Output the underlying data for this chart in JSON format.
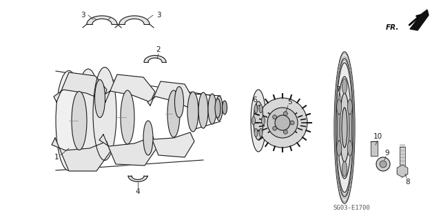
{
  "bg_color": "#ffffff",
  "line_color": "#1a1a1a",
  "fig_width": 6.4,
  "fig_height": 3.19,
  "diagram_code": "SG03-E1700",
  "fr_label": "FR."
}
